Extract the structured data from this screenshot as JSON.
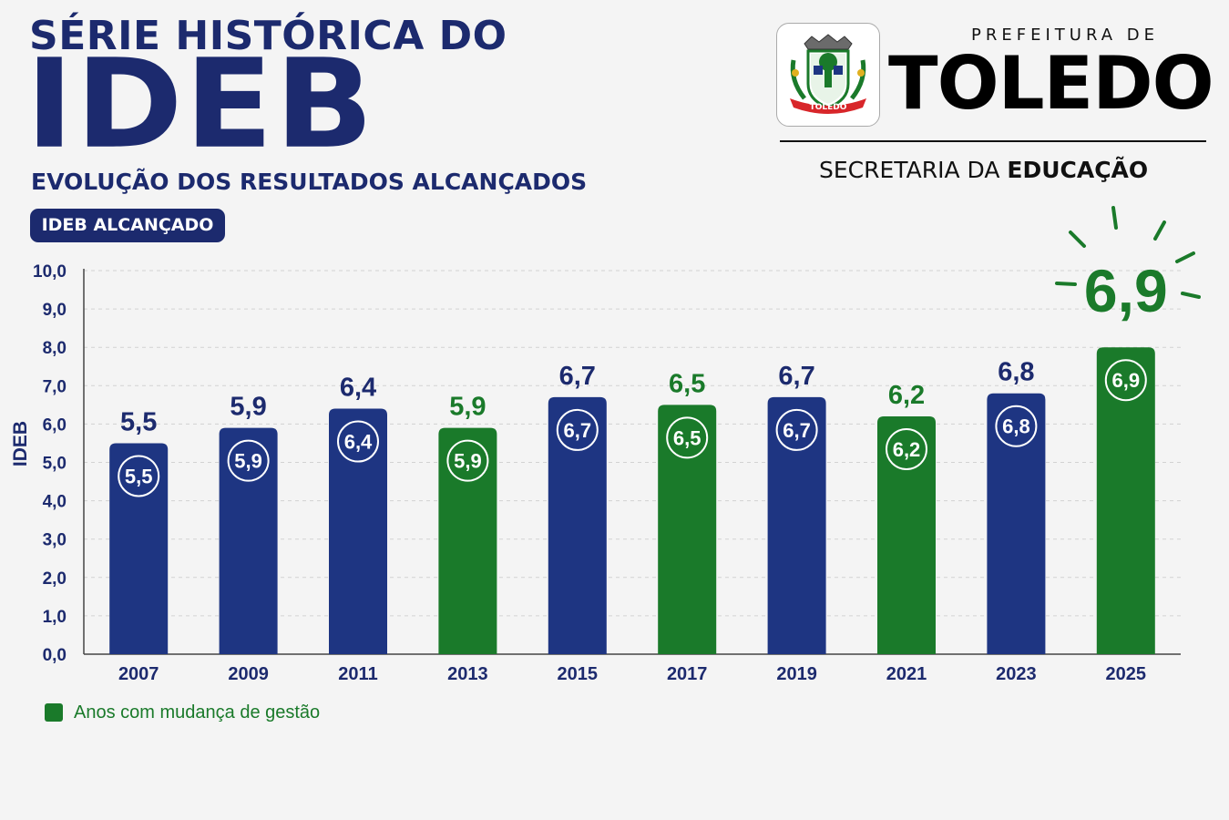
{
  "header": {
    "title_line1": "SÉRIE HISTÓRICA DO",
    "title_line2": "IDEB",
    "subtitle": "EVOLUÇÃO DOS RESULTADOS ALCANÇADOS",
    "badge": "IDEB ALCANÇADO"
  },
  "logo": {
    "prefix": "PREFEITURA DE",
    "city": "TOLEDO",
    "department_prefix": "SECRETARIA DA ",
    "department_bold": "EDUCAÇÃO",
    "crest_text": "TOLEDO"
  },
  "colors": {
    "navy": "#1c2a6e",
    "bar_blue": "#1e3582",
    "bar_green": "#1a7a2a",
    "highlight_green": "#1a7a2a"
  },
  "chart_data": {
    "type": "bar",
    "categories": [
      "2007",
      "2009",
      "2011",
      "2013",
      "2015",
      "2017",
      "2019",
      "2021",
      "2023",
      "2025"
    ],
    "values": [
      5.5,
      5.9,
      6.4,
      5.9,
      6.7,
      6.5,
      6.7,
      6.2,
      6.8,
      6.9
    ],
    "value_labels": [
      "5,5",
      "5,9",
      "6,4",
      "5,9",
      "6,7",
      "6,5",
      "6,7",
      "6,2",
      "6,8",
      "6,9"
    ],
    "bar_colors": [
      "blue",
      "blue",
      "blue",
      "green",
      "blue",
      "green",
      "blue",
      "green",
      "blue",
      "green"
    ],
    "ylabel": "IDEB",
    "ylim": [
      0,
      10
    ],
    "yticks": [
      "0,0",
      "1,0",
      "2,0",
      "3,0",
      "4,0",
      "5,0",
      "6,0",
      "7,0",
      "8,0",
      "9,0",
      "10,0"
    ],
    "grid": true,
    "highlight_value": "6,9",
    "legend": [
      {
        "label": "Anos com mudança de gestão",
        "color": "#1a7a2a"
      }
    ]
  }
}
